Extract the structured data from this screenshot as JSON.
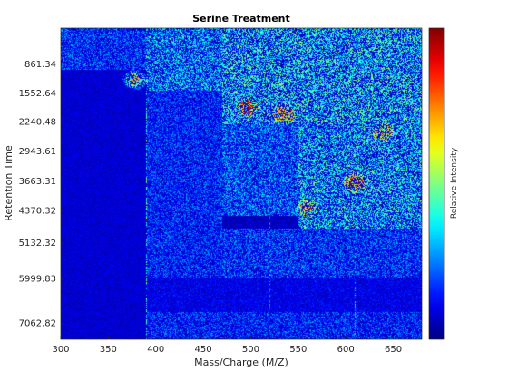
{
  "chart_data": {
    "type": "heatmap",
    "title": "Serine Treatment",
    "xlabel": "Mass/Charge (M/Z)",
    "ylabel": "Retention Time",
    "colorbar_label": "Relative Intensity",
    "colormap": "jet",
    "xlim": [
      300,
      680
    ],
    "ylim": [
      0,
      7450
    ],
    "x_ticks": [
      300,
      350,
      400,
      450,
      500,
      550,
      600,
      650
    ],
    "y_ticks": [
      861.34,
      1552.64,
      2240.48,
      2943.61,
      3663.31,
      4370.32,
      5132.32,
      5999.83,
      7062.82
    ],
    "y_reversed": true,
    "grid": false,
    "regions": [
      {
        "x": [
          300,
          390
        ],
        "y": [
          0,
          1000
        ],
        "intensity": 0.22
      },
      {
        "x": [
          300,
          390
        ],
        "y": [
          1000,
          7450
        ],
        "intensity": 0.08
      },
      {
        "x": [
          390,
          470
        ],
        "y": [
          0,
          1500
        ],
        "intensity": 0.32
      },
      {
        "x": [
          390,
          470
        ],
        "y": [
          1500,
          6000
        ],
        "intensity": 0.2
      },
      {
        "x": [
          470,
          680
        ],
        "y": [
          0,
          2300
        ],
        "intensity": 0.38
      },
      {
        "x": [
          470,
          550
        ],
        "y": [
          2300,
          4500
        ],
        "intensity": 0.26
      },
      {
        "x": [
          550,
          680
        ],
        "y": [
          2300,
          4800
        ],
        "intensity": 0.36
      },
      {
        "x": [
          470,
          680
        ],
        "y": [
          4800,
          6000
        ],
        "intensity": 0.22
      },
      {
        "x": [
          300,
          680
        ],
        "y": [
          6000,
          6800
        ],
        "intensity": 0.12
      },
      {
        "x": [
          300,
          680
        ],
        "y": [
          6800,
          7450
        ],
        "intensity": 0.2
      }
    ],
    "streaks": [
      {
        "x": 390,
        "intensity": 0.4
      },
      {
        "x": 520,
        "intensity": 0.3
      },
      {
        "x": 610,
        "intensity": 0.35
      }
    ],
    "hotspots": [
      {
        "x": 378,
        "y": 1240,
        "intensity": 0.6
      },
      {
        "x": 497,
        "y": 1900,
        "intensity": 0.75
      },
      {
        "x": 535,
        "y": 2050,
        "intensity": 0.7
      },
      {
        "x": 610,
        "y": 3700,
        "intensity": 0.8
      },
      {
        "x": 640,
        "y": 2500,
        "intensity": 0.65
      },
      {
        "x": 560,
        "y": 4300,
        "intensity": 0.6
      }
    ]
  }
}
